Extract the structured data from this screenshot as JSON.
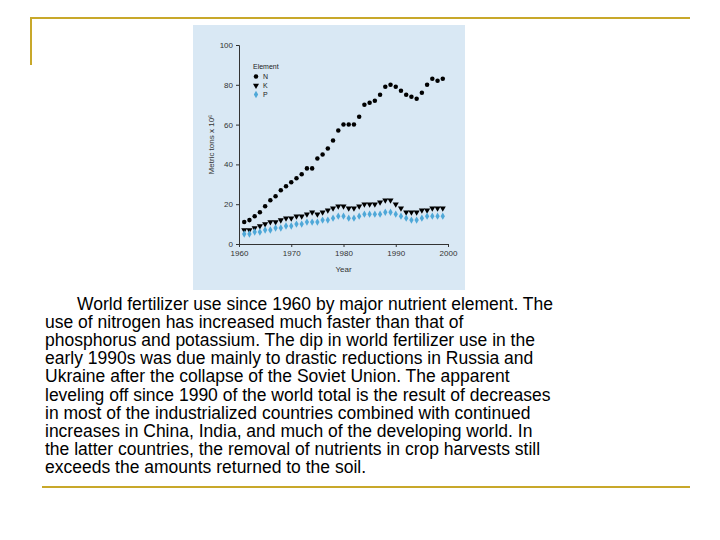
{
  "chart_data": {
    "type": "scatter",
    "x_label": "Year",
    "y_label": "Metric tons x 10⁶",
    "legend_title": "Element",
    "x": [
      1961,
      1962,
      1963,
      1964,
      1965,
      1966,
      1967,
      1968,
      1969,
      1970,
      1971,
      1972,
      1973,
      1974,
      1975,
      1976,
      1977,
      1978,
      1979,
      1980,
      1981,
      1982,
      1983,
      1984,
      1985,
      1986,
      1987,
      1988,
      1989,
      1990,
      1991,
      1992,
      1993,
      1994,
      1995,
      1996,
      1997,
      1998,
      1999
    ],
    "series": [
      {
        "name": "N",
        "color": "#000000",
        "marker": "circle",
        "values": [
          11,
          12,
          14,
          16,
          19,
          22,
          24,
          27,
          29,
          31,
          33,
          35,
          38,
          38,
          43,
          45,
          48,
          52,
          57,
          60,
          60,
          60,
          64,
          70,
          71,
          72,
          75,
          79,
          80,
          79,
          77,
          75,
          74,
          73,
          76,
          80,
          83,
          82,
          83
        ]
      },
      {
        "name": "K",
        "color": "#000000",
        "marker": "triangle-down",
        "values": [
          7,
          7,
          8,
          9,
          10,
          11,
          11,
          12,
          13,
          13,
          14,
          14,
          15,
          16,
          15,
          16,
          17,
          18,
          19,
          19,
          18,
          18,
          19,
          20,
          20,
          20,
          21,
          22,
          22,
          20,
          18,
          16,
          16,
          16,
          17,
          17,
          18,
          18,
          18
        ]
      },
      {
        "name": "P",
        "color": "#4fa8d8",
        "marker": "diamond",
        "values": [
          5,
          5,
          6,
          6,
          7,
          7,
          8,
          8,
          9,
          9,
          10,
          10,
          11,
          11,
          11,
          12,
          12,
          13,
          14,
          14,
          13,
          13,
          14,
          15,
          15,
          15,
          15,
          16,
          16,
          15,
          14,
          13,
          12,
          12,
          13,
          14,
          14,
          14,
          14
        ]
      }
    ],
    "xlim": [
      1960,
      2000
    ],
    "xticks": [
      1960,
      1970,
      1980,
      1990,
      2000
    ],
    "ylim": [
      0,
      100
    ],
    "yticks": [
      0,
      20,
      40,
      60,
      80,
      100
    ],
    "grid": false,
    "legend": "upper left"
  },
  "caption": {
    "lines": [
      "World fertilizer use since 1960 by major nutrient element. The",
      "use of nitrogen has increased much faster than that of",
      "phosphorus and potassium. The dip in world fertilizer use in the",
      "early 1990s was due mainly to drastic reductions in Russia and",
      "Ukraine after the collapse of the Soviet Union. The apparent",
      "leveling off since 1990 of the world total is the result of decreases",
      "in most of the industrialized countries combined with continued",
      "increases in China, India, and much of the developing world. In",
      "the latter countries, the removal of nutrients in crop harvests still",
      "exceeds the amounts returned to the soil."
    ]
  }
}
